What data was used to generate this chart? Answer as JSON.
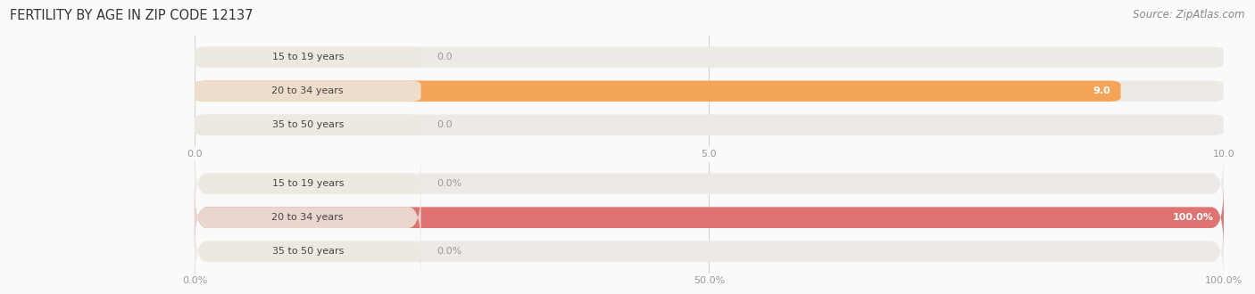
{
  "title": "FERTILITY BY AGE IN ZIP CODE 12137",
  "source": "Source: ZipAtlas.com",
  "top_chart": {
    "categories": [
      "15 to 19 years",
      "20 to 34 years",
      "35 to 50 years"
    ],
    "values": [
      0.0,
      9.0,
      0.0
    ],
    "xlim": [
      0,
      10
    ],
    "xticks": [
      0.0,
      5.0,
      10.0
    ],
    "xtick_labels": [
      "0.0",
      "5.0",
      "10.0"
    ],
    "bar_color": "#F5A55A",
    "bar_bg_color": "#EDE9E4",
    "label_bg_color": "#EDE9E4",
    "value_color_inside": "#FFFFFF",
    "value_color_outside": "#999999"
  },
  "bottom_chart": {
    "categories": [
      "15 to 19 years",
      "20 to 34 years",
      "35 to 50 years"
    ],
    "values": [
      0.0,
      100.0,
      0.0
    ],
    "xlim": [
      0,
      100
    ],
    "xticks": [
      0.0,
      50.0,
      100.0
    ],
    "xtick_labels": [
      "0.0%",
      "50.0%",
      "100.0%"
    ],
    "bar_color": "#E07272",
    "bar_bg_color": "#EDE9E4",
    "label_bg_color": "#EDE9E4",
    "value_color_inside": "#FFFFFF",
    "value_color_outside": "#999999"
  },
  "background_color": "#FAFAFA",
  "bar_height": 0.62,
  "label_fontsize": 8.0,
  "value_fontsize": 8.0,
  "title_fontsize": 10.5,
  "source_fontsize": 8.5,
  "tick_fontsize": 8.0
}
